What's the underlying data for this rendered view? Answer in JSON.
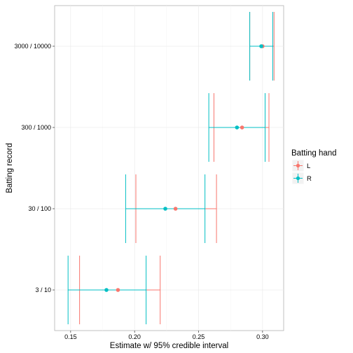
{
  "chart_data": {
    "type": "scatter",
    "title": "",
    "xlabel": "Estimate w/ 95% credible interval",
    "ylabel": "Batting record",
    "xlim": [
      0.1375,
      0.3165
    ],
    "x_ticks": [
      "0.15",
      "0.20",
      "0.25",
      "0.30"
    ],
    "x_tick_values": [
      0.15,
      0.2,
      0.25,
      0.3
    ],
    "categories": [
      "3 / 10",
      "30 / 100",
      "300 / 1000",
      "3000 / 10000"
    ],
    "grid": true,
    "legend": {
      "title": "Batting hand",
      "placement": "right"
    },
    "series": [
      {
        "name": "L",
        "color": "#F8766D",
        "estimate": [
          0.187,
          0.232,
          0.284,
          0.3
        ],
        "lower": [
          0.157,
          0.201,
          0.262,
          0.29
        ],
        "upper": [
          0.22,
          0.264,
          0.305,
          0.309
        ]
      },
      {
        "name": "R",
        "color": "#00BFC4",
        "estimate": [
          0.178,
          0.224,
          0.28,
          0.299
        ],
        "lower": [
          0.148,
          0.193,
          0.258,
          0.29
        ],
        "upper": [
          0.209,
          0.255,
          0.302,
          0.308
        ]
      }
    ]
  }
}
